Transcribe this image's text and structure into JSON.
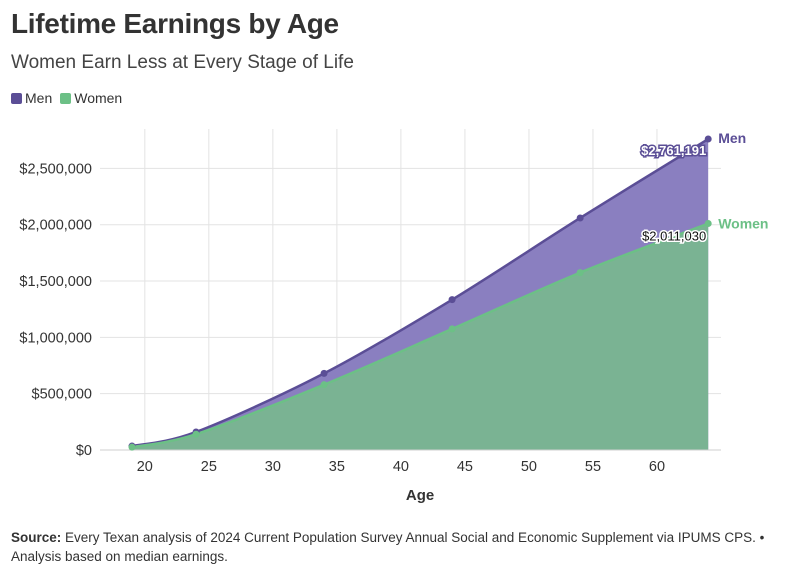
{
  "header": {
    "title": "Lifetime Earnings by Age",
    "subtitle": "Women Earn Less at Every Stage of Life"
  },
  "footer": {
    "source_label": "Source:",
    "source_text": "Every Texan analysis of 2024 Current Population Survey Annual Social and Economic Supplement via IPUMS CPS. • Analysis based on median earnings."
  },
  "colors": {
    "men_line": "#5b4e96",
    "men_fill": "#8a7fc0",
    "women_line": "#6cc086",
    "women_fill": "#7ab393"
  },
  "chart_data": {
    "type": "area",
    "title": "Lifetime Earnings by Age",
    "subtitle": "Women Earn Less at Every Stage of Life",
    "xlabel": "Age",
    "ylabel": "",
    "xlim": [
      16.5,
      65
    ],
    "ylim": [
      0,
      2850000
    ],
    "xticks": [
      20,
      25,
      30,
      35,
      40,
      45,
      50,
      55,
      60
    ],
    "yticks": [
      0,
      500000,
      1000000,
      1500000,
      2000000,
      2500000
    ],
    "ytick_labels": [
      "$0",
      "$500,000",
      "$1,000,000",
      "$1,500,000",
      "$2,000,000",
      "$2,500,000"
    ],
    "legend": [
      "Men",
      "Women"
    ],
    "legend_position": "top-left",
    "series": [
      {
        "name": "Men",
        "x": [
          19,
          24,
          34,
          44,
          54,
          64
        ],
        "values": [
          35000,
          160000,
          680000,
          1335000,
          2060000,
          2761191
        ],
        "end_label": "$2,761,191",
        "series_label": "Men"
      },
      {
        "name": "Women",
        "x": [
          19,
          24,
          34,
          44,
          54,
          64
        ],
        "values": [
          25000,
          140000,
          580000,
          1075000,
          1575000,
          2011030
        ],
        "end_label": "$2,011,030",
        "series_label": "Women"
      }
    ]
  }
}
